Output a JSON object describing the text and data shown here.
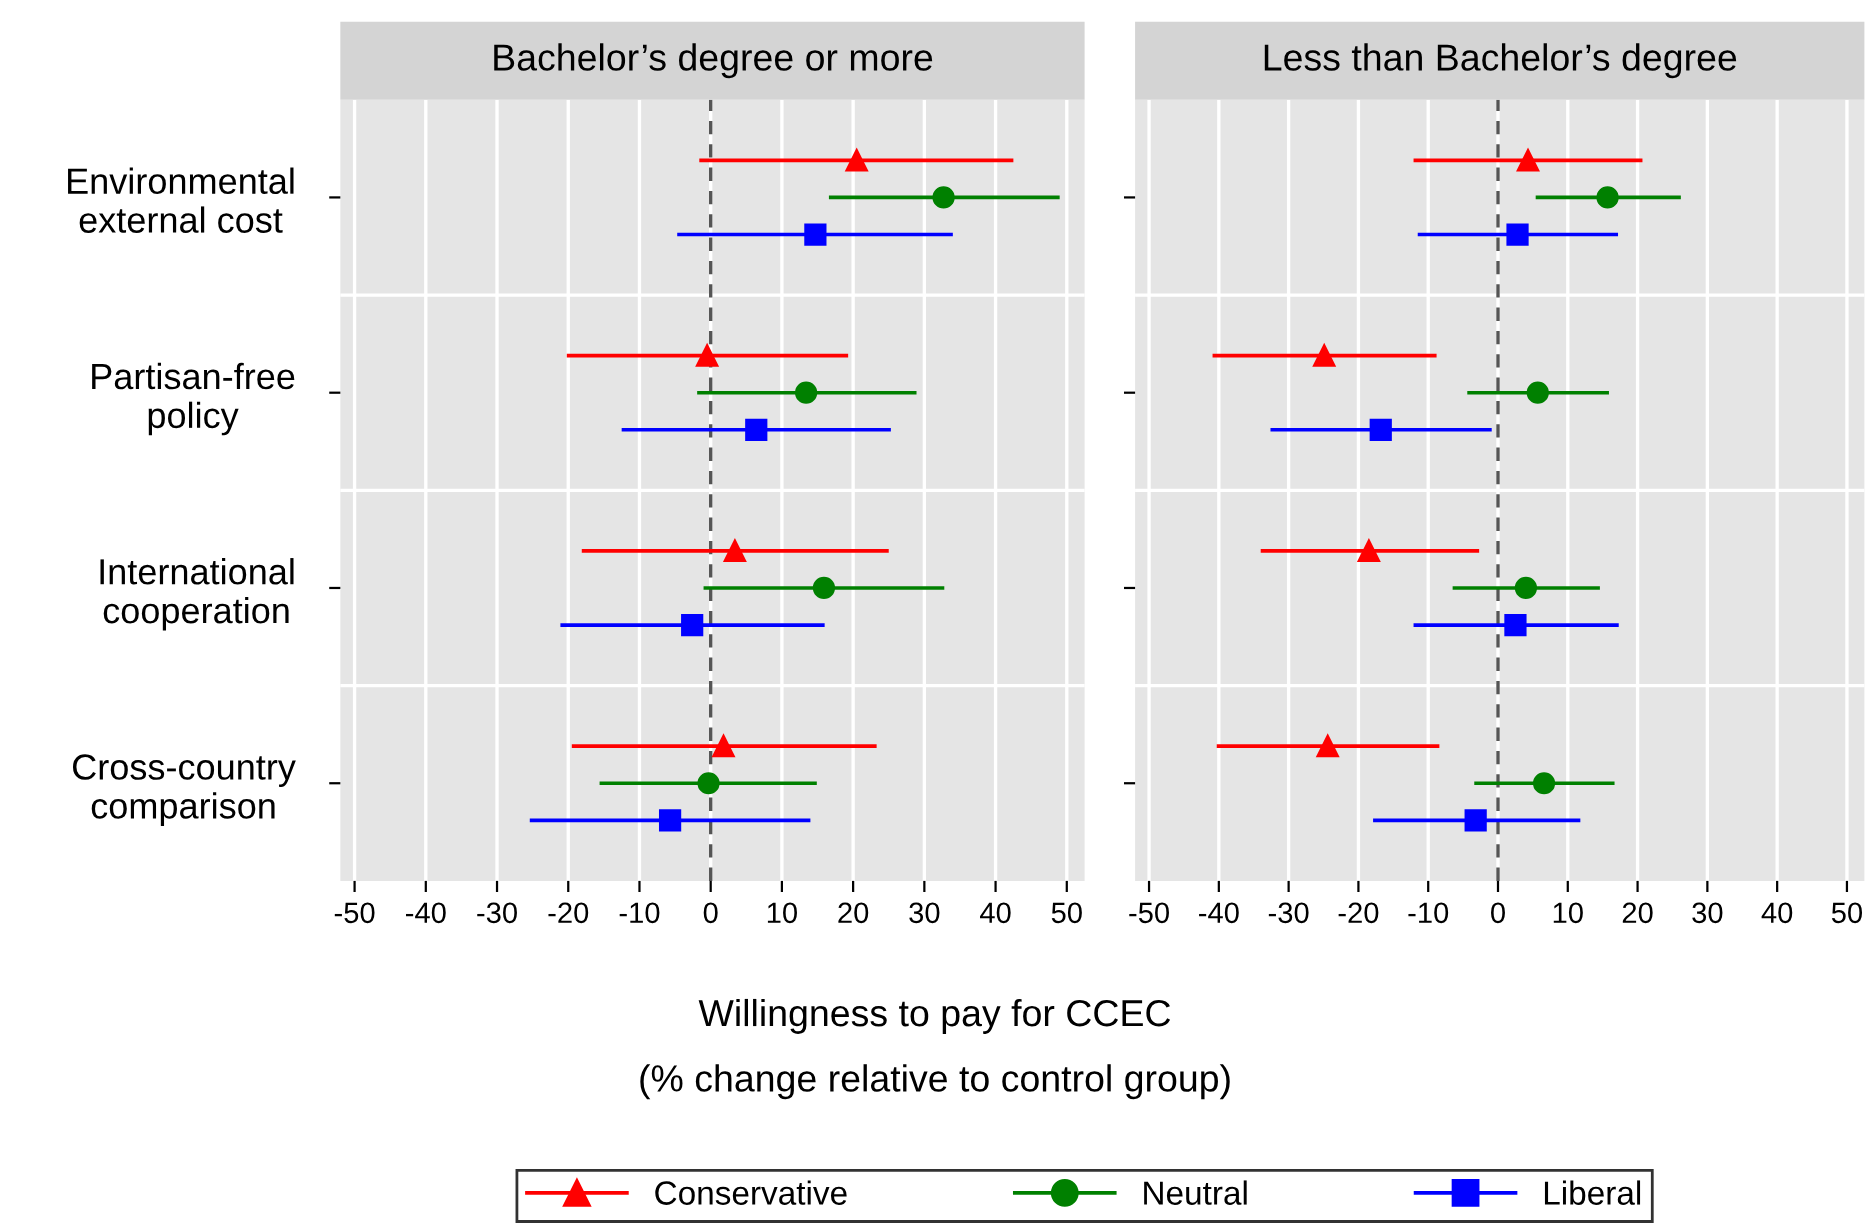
{
  "chart_data": [
    {
      "type": "scatter",
      "orientation": "horizontal",
      "title": "Bachelor’s degree or more",
      "xlabel": "Willingness to pay for CCEC",
      "annotations": [
        "(% change relative to control group)"
      ],
      "categories": [
        "Environmental\nexternal cost",
        "Partisan-free\npolicy",
        "International\ncooperation",
        "Cross-country\ncomparison"
      ],
      "series": [
        {
          "name": "Conservative",
          "color": "#ff0000",
          "marker": "triangle",
          "values": [
            20.5,
            -0.5,
            3.4,
            1.8
          ],
          "errors": [
            [
              -1.6,
              42.5
            ],
            [
              -20.2,
              19.3
            ],
            [
              -18.1,
              25.0
            ],
            [
              -19.5,
              23.3
            ]
          ]
        },
        {
          "name": "Neutral",
          "color": "#008000",
          "marker": "circle",
          "values": [
            32.7,
            13.4,
            15.9,
            -0.3
          ],
          "errors": [
            [
              16.6,
              49.0
            ],
            [
              -1.9,
              28.9
            ],
            [
              -1.0,
              32.8
            ],
            [
              -15.6,
              14.9
            ]
          ]
        },
        {
          "name": "Liberal",
          "color": "#0000ff",
          "marker": "square",
          "values": [
            14.7,
            6.4,
            -2.6,
            -5.7
          ],
          "errors": [
            [
              -4.7,
              34.0
            ],
            [
              -12.5,
              25.3
            ],
            [
              -21.1,
              16.0
            ],
            [
              -25.4,
              14.0
            ]
          ]
        }
      ],
      "xlim": [
        -52,
        52.5
      ],
      "xticks": [
        -50,
        -40,
        -30,
        -20,
        -10,
        0,
        10,
        20,
        30,
        40,
        50
      ],
      "ref_lines": [
        {
          "axis": "x",
          "value": 0,
          "color": "#555555",
          "line_style": "dashed"
        }
      ],
      "grid": true,
      "legend": "bottom"
    },
    {
      "type": "scatter",
      "orientation": "horizontal",
      "title": "Less than Bachelor’s degree",
      "categories": [
        null,
        null,
        null,
        null
      ],
      "series": [
        {
          "color": "#ff0000",
          "marker": "triangle",
          "values": [
            4.3,
            -24.9,
            -18.5,
            -24.4
          ],
          "errors": [
            [
              -12.1,
              20.7
            ],
            [
              -40.9,
              -8.8
            ],
            [
              -34.0,
              -2.7
            ],
            [
              -40.3,
              -8.4
            ]
          ]
        },
        {
          "color": "#008000",
          "marker": "circle",
          "values": [
            15.7,
            5.7,
            4.0,
            6.6
          ],
          "errors": [
            [
              5.4,
              26.2
            ],
            [
              -4.4,
              15.9
            ],
            [
              -6.5,
              14.6
            ],
            [
              -3.4,
              16.7
            ]
          ]
        },
        {
          "color": "#0000ff",
          "marker": "square",
          "values": [
            2.8,
            -16.8,
            2.5,
            -3.2
          ],
          "errors": [
            [
              -11.5,
              17.2
            ],
            [
              -32.6,
              -0.9
            ],
            [
              -12.1,
              17.3
            ],
            [
              -17.9,
              11.8
            ]
          ]
        }
      ],
      "xlim": [
        -52,
        52.5
      ],
      "xticks": [
        -50,
        -40,
        -30,
        -20,
        -10,
        0,
        10,
        20,
        30,
        40,
        50
      ],
      "ref_lines": [
        {
          "axis": "x",
          "value": 0,
          "color": "#555555",
          "line_style": "dashed"
        }
      ],
      "grid": true,
      "legend": "bottom",
      "tick_labels": "x"
    }
  ]
}
